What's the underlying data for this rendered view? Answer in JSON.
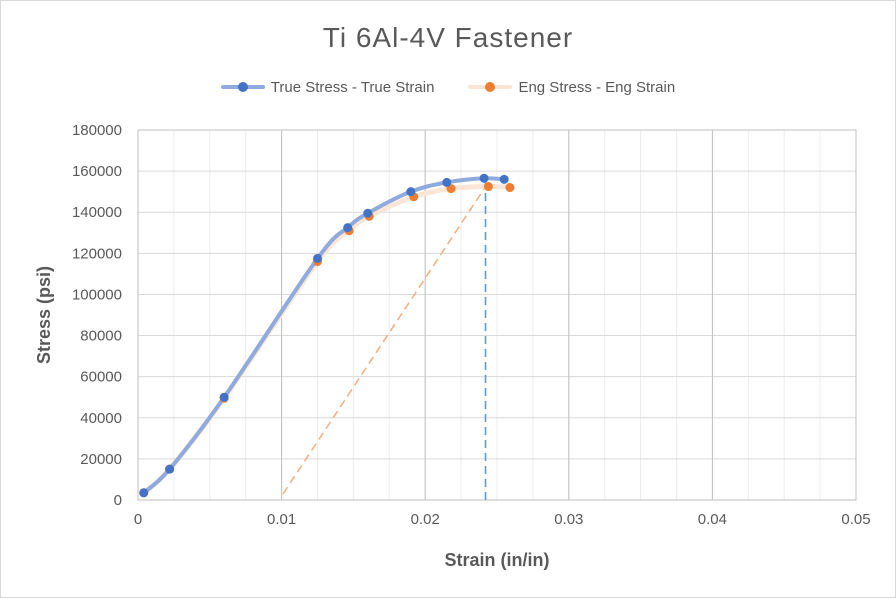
{
  "chart_data": {
    "type": "scatter",
    "title": "Ti 6Al-4V Fastener",
    "xlabel": "Strain (in/in)",
    "ylabel": "Stress (psi)",
    "xlim": [
      0,
      0.05
    ],
    "ylim": [
      0,
      180000
    ],
    "x_ticks": [
      "0",
      "0.01",
      "0.02",
      "0.03",
      "0.04",
      "0.05"
    ],
    "y_ticks": [
      "0",
      "20000",
      "40000",
      "60000",
      "80000",
      "100000",
      "120000",
      "140000",
      "160000",
      "180000"
    ],
    "grid": {
      "major": true,
      "minor": true
    },
    "legend_position": "top",
    "series": [
      {
        "name": "True Stress - True Strain",
        "color": "#4472c4",
        "line_color": "#8faadc",
        "x": [
          0.0004,
          0.0022,
          0.006,
          0.0125,
          0.0146,
          0.016,
          0.019,
          0.0215,
          0.0241,
          0.0255
        ],
        "y": [
          3500,
          15000,
          50000,
          117500,
          132500,
          139500,
          150000,
          154500,
          156500,
          156000
        ]
      },
      {
        "name": "Eng Stress - Eng Strain",
        "color": "#ed7d31",
        "line_color": "#fbe5d6",
        "x": [
          0.0004,
          0.0022,
          0.006,
          0.0125,
          0.0147,
          0.0161,
          0.0192,
          0.0218,
          0.0244,
          0.0259
        ],
        "y": [
          3500,
          15000,
          49500,
          116000,
          131000,
          138000,
          147500,
          151500,
          152500,
          152000
        ]
      }
    ],
    "guide_lines": [
      {
        "type": "offset-line",
        "color": "#f4b183",
        "x": [
          0.0101,
          0.0243
        ],
        "y": [
          3000,
          153500
        ]
      },
      {
        "type": "vertical-line",
        "color": "#5b9bd5",
        "x": [
          0.0242,
          0.0242
        ],
        "y": [
          0,
          156500
        ]
      }
    ]
  }
}
